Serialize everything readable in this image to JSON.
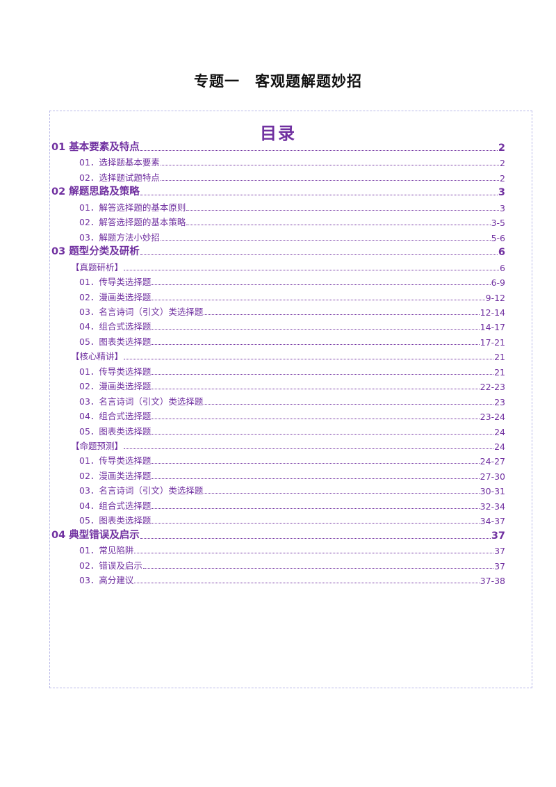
{
  "title": "专题一　客观题解题妙招",
  "toc_heading": "目录",
  "toc": [
    {
      "label": "01 基本要素及特点",
      "page": "2",
      "level": 1
    },
    {
      "label": "01．选择题基本要素",
      "page": "2",
      "level": 2
    },
    {
      "label": "02．选择题试题特点",
      "page": "2",
      "level": 2
    },
    {
      "label": "02 解题思路及策略",
      "page": "3",
      "level": 1
    },
    {
      "label": "01．解答选择题的基本原则",
      "page": "3",
      "level": 2
    },
    {
      "label": "02．解答选择题的基本策略",
      "page": "3-5",
      "level": 2
    },
    {
      "label": "03．解题方法小妙招",
      "page": "5-6",
      "level": 2
    },
    {
      "label": "03 题型分类及研析",
      "page": "6",
      "level": 1
    },
    {
      "label": "【真题研析】",
      "page": "6",
      "level": 2
    },
    {
      "label": "01．传导类选择题",
      "page": "6-9",
      "level": 2
    },
    {
      "label": "02．漫画类选择题",
      "page": "9-12",
      "level": 2
    },
    {
      "label": "03．名言诗词（引文）类选择题",
      "page": "12-14",
      "level": 2
    },
    {
      "label": "04．组合式选择题",
      "page": "14-17",
      "level": 2
    },
    {
      "label": "05．图表类选择题",
      "page": "17-21",
      "level": 2
    },
    {
      "label": "【核心精讲】",
      "page": "21",
      "level": 2
    },
    {
      "label": "01．传导类选择题",
      "page": "21",
      "level": 2
    },
    {
      "label": "02．漫画类选择题",
      "page": "22-23",
      "level": 2
    },
    {
      "label": "03．名言诗词（引文）类选择题",
      "page": "23",
      "level": 2
    },
    {
      "label": "04．组合式选择题",
      "page": "23-24",
      "level": 2
    },
    {
      "label": "05．图表类选择题",
      "page": "24",
      "level": 2
    },
    {
      "label": "【命题预测】",
      "page": "24",
      "level": 2
    },
    {
      "label": "01．传导类选择题",
      "page": "24-27",
      "level": 2
    },
    {
      "label": "02．漫画类选择题",
      "page": "27-30",
      "level": 2
    },
    {
      "label": "03．名言诗词（引文）类选择题",
      "page": "30-31",
      "level": 2
    },
    {
      "label": "04．组合式选择题",
      "page": "32-34",
      "level": 2
    },
    {
      "label": "05．图表类选择题",
      "page": "34-37",
      "level": 2
    },
    {
      "label": "04 典型错误及启示",
      "page": "37",
      "level": 1
    },
    {
      "label": "01．常见陷阱",
      "page": "37",
      "level": 2
    },
    {
      "label": "02．错误及启示",
      "page": "37",
      "level": 2
    },
    {
      "label": "03．高分建议",
      "page": "37-38",
      "level": 2
    }
  ]
}
